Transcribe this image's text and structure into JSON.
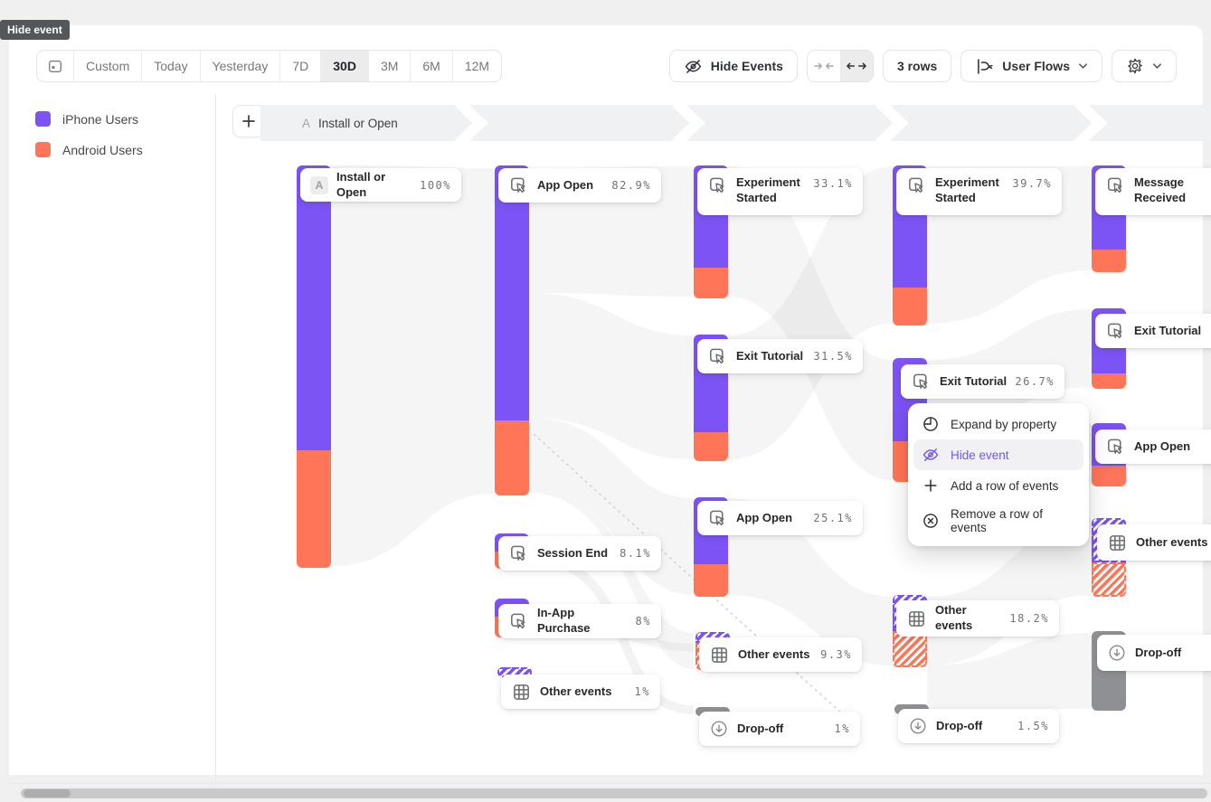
{
  "tooltip": "Hide event",
  "toolbar": {
    "date_ranges": [
      "Custom",
      "Today",
      "Yesterday",
      "7D",
      "30D",
      "3M",
      "6M",
      "12M"
    ],
    "selected_range": "30D",
    "hide_events": "Hide Events",
    "rows": "3 rows",
    "view": "User Flows"
  },
  "legend": [
    {
      "label": "iPhone Users",
      "color": "#7C53F4"
    },
    {
      "label": "Android Users",
      "color": "#FF7557"
    }
  ],
  "flow_header": {
    "badge": "A",
    "label": "Install or Open"
  },
  "colors": {
    "iphone": "#7C53F4",
    "android": "#FF7557",
    "dropoff": "#8E9093",
    "accent": "#7456EB"
  },
  "context_menu": [
    {
      "icon": "expand-property-icon",
      "label": "Expand by property",
      "active": false
    },
    {
      "icon": "hide-eye-icon",
      "label": "Hide event",
      "active": true
    },
    {
      "icon": "plus-icon",
      "label": "Add a row of events",
      "active": false
    },
    {
      "icon": "remove-circle-icon",
      "label": "Remove a row of events",
      "active": false
    }
  ],
  "nodes": [
    {
      "id": "install",
      "label": "Install or Open",
      "pct": "100%",
      "kind": "first"
    },
    {
      "id": "app-open-1",
      "label": "App Open",
      "pct": "82.9%",
      "kind": "event"
    },
    {
      "id": "session-end",
      "label": "Session End",
      "pct": "8.1%",
      "kind": "event"
    },
    {
      "id": "iap",
      "label": "In-App Purchase",
      "pct": "8%",
      "kind": "event"
    },
    {
      "id": "other-1",
      "label": "Other events",
      "pct": "1%",
      "kind": "other"
    },
    {
      "id": "exp-started-1",
      "label": "Experiment Started",
      "pct": "33.1%",
      "kind": "event"
    },
    {
      "id": "exit-tut-1",
      "label": "Exit Tutorial",
      "pct": "31.5%",
      "kind": "event"
    },
    {
      "id": "app-open-2",
      "label": "App Open",
      "pct": "25.1%",
      "kind": "event"
    },
    {
      "id": "other-2",
      "label": "Other events",
      "pct": "9.3%",
      "kind": "other"
    },
    {
      "id": "dropoff-1",
      "label": "Drop-off",
      "pct": "1%",
      "kind": "dropoff"
    },
    {
      "id": "exp-started-2",
      "label": "Experiment Started",
      "pct": "39.7%",
      "kind": "event"
    },
    {
      "id": "exit-tut-2",
      "label": "Exit Tutorial",
      "pct": "26.7%",
      "kind": "event"
    },
    {
      "id": "other-3",
      "label": "Other events",
      "pct": "18.2%",
      "kind": "other"
    },
    {
      "id": "dropoff-2",
      "label": "Drop-off",
      "pct": "1.5%",
      "kind": "dropoff"
    },
    {
      "id": "msg-received",
      "label": "Message Received",
      "pct": "",
      "kind": "event"
    },
    {
      "id": "exit-tut-3",
      "label": "Exit Tutorial",
      "pct": "",
      "kind": "event"
    },
    {
      "id": "app-open-3",
      "label": "App Open",
      "pct": "",
      "kind": "event"
    },
    {
      "id": "other-4",
      "label": "Other events",
      "pct": "",
      "kind": "other"
    },
    {
      "id": "dropoff-3",
      "label": "Drop-off",
      "pct": "",
      "kind": "dropoff"
    }
  ]
}
